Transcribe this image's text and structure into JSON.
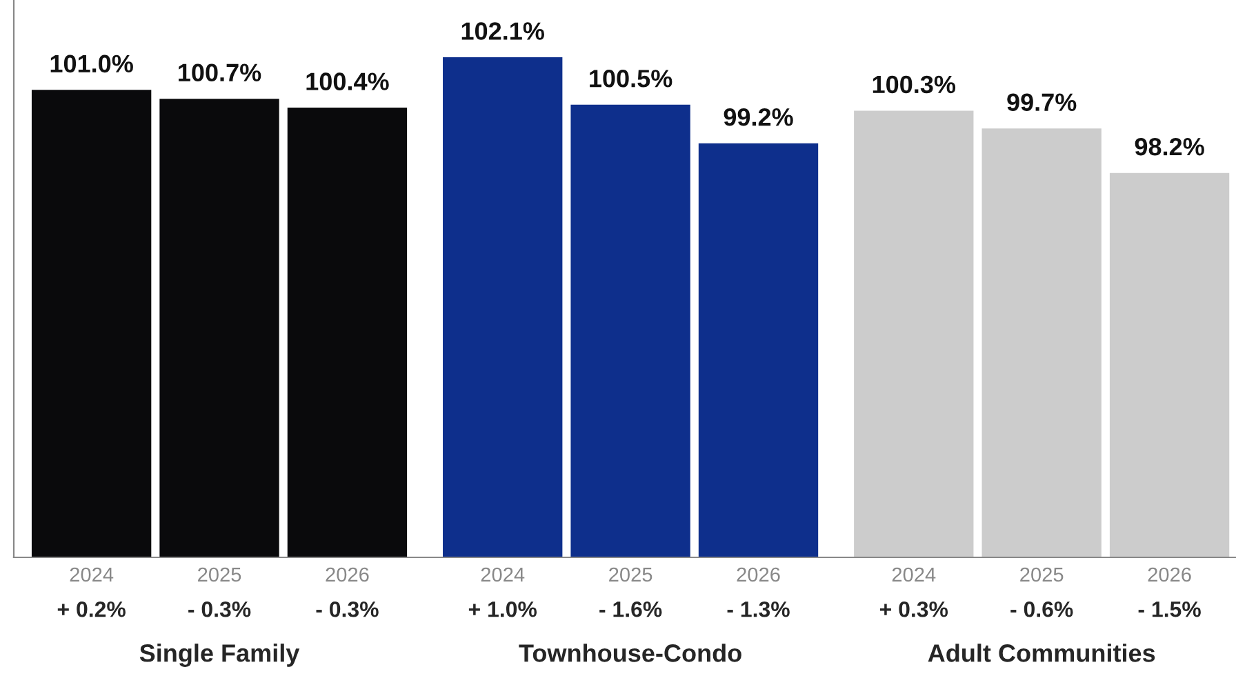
{
  "chart_data": {
    "type": "bar",
    "categories": [
      "2024",
      "2025",
      "2026",
      "2024",
      "2025",
      "2026",
      "2024",
      "2025",
      "2026"
    ],
    "values": [
      101.0,
      100.7,
      100.4,
      102.1,
      100.5,
      99.2,
      100.3,
      99.7,
      98.2
    ],
    "value_labels": [
      "101.0%",
      "100.7%",
      "100.4%",
      "102.1%",
      "100.5%",
      "99.2%",
      "100.3%",
      "99.7%",
      "98.2%"
    ],
    "colors": [
      "#0a0a0c",
      "#0a0a0c",
      "#0a0a0c",
      "#0e2f8c",
      "#0e2f8c",
      "#0e2f8c",
      "#cccccc",
      "#cccccc",
      "#cccccc"
    ],
    "ylim": [
      85.2,
      104
    ],
    "annotations": [
      "+ 0.2%",
      "- 0.3%",
      "- 0.3%",
      "+ 1.0%",
      "- 1.6%",
      "- 1.3%",
      "+ 0.3%",
      "- 0.6%",
      "- 1.5%",
      "Single Family",
      "Townhouse-Condo",
      "Adult Communities"
    ]
  }
}
